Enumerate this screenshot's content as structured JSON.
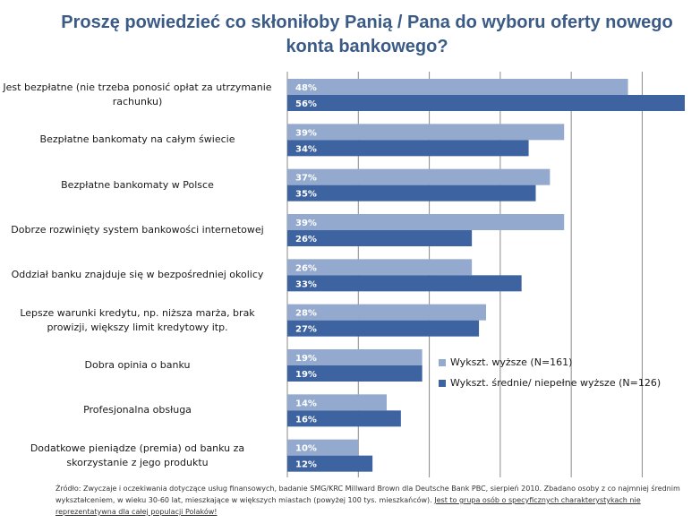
{
  "colors": {
    "series1": "#94a9ce",
    "series2": "#3d63a0",
    "title": "#3b5b87"
  },
  "chart_data": {
    "type": "bar",
    "orientation": "horizontal",
    "title": "Proszę powiedzieć co skłoniłoby Panią / Pana do wyboru oferty nowego konta bankowego?",
    "categories": [
      "Jest bezpłatne (nie trzeba ponosić opłat za utrzymanie rachunku)",
      "Bezpłatne bankomaty na całym świecie",
      "Bezpłatne bankomaty w Polsce",
      "Dobrze rozwinięty system bankowości internetowej",
      "Oddział banku znajduje się w bezpośredniej okolicy",
      "Lepsze warunki kredytu, np. niższa marża, brak prowizji, większy limit kredytowy itp.",
      "Dobra opinia o banku",
      "Profesjonalna obsługa",
      "Dodatkowe pieniądze (premia) od banku za skorzystanie z jego produktu"
    ],
    "series": [
      {
        "name": "Wykszt. wyższe (N=161)",
        "values": [
          48,
          39,
          37,
          39,
          26,
          28,
          19,
          14,
          10
        ],
        "labels": [
          "48%",
          "39%",
          "37%",
          "39%",
          "26%",
          "28%",
          "19%",
          "14%",
          "10%"
        ]
      },
      {
        "name": "Wykszt. średnie/ niepełne wyższe (N=126)",
        "values": [
          56,
          34,
          35,
          26,
          33,
          27,
          19,
          16,
          12
        ],
        "labels": [
          "56%",
          "34%",
          "35%",
          "26%",
          "33%",
          "27%",
          "19%",
          "16%",
          "12%"
        ]
      }
    ],
    "xlim": [
      0,
      56
    ],
    "grid": true,
    "legend": "right"
  },
  "source_note": {
    "text": "Źródło: Zwyczaje i oczekiwania dotyczące usług finansowych, badanie SMG/KRC Millward Brown dla Deutsche Bank PBC, sierpień 2010. Zbadano osoby z co najmniej średnim wykształceniem, w wieku 30-60 lat, mieszkające w większych miastach (powyżej 100 tys. mieszkańców). ",
    "underlined": "Jest to grupa osób o specyficznych charakterystykach nie reprezentatywna dla całej populacji Polaków!"
  }
}
